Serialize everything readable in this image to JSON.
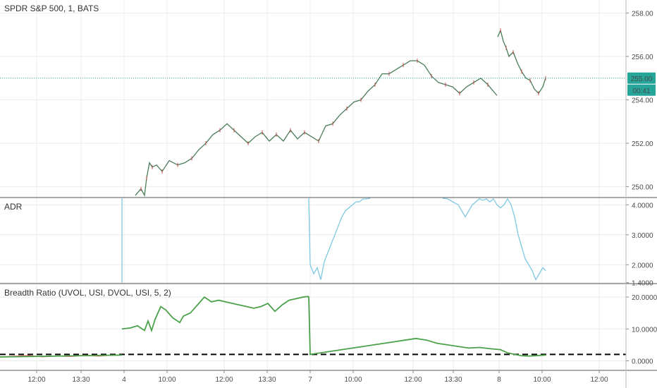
{
  "colors": {
    "price_up": "#4a7c59",
    "price_down": "#c0504d",
    "adr_line": "#7ec8e3",
    "breadth_line": "#4aa14a",
    "breadth_red": "#e05050",
    "dashed": "#000000",
    "last_price_line": "#26a69a",
    "badge": "#26a69a",
    "grid": "#ececec",
    "separator": "#555555"
  },
  "chart_data": [
    {
      "type": "line",
      "title": "SPDR S&P 500, 1, BATS",
      "ylim": [
        249.5,
        258.6
      ],
      "yticks": [
        "258.00",
        "256.00",
        "254.00",
        "252.00",
        "250.00"
      ],
      "ytick_values": [
        258,
        256,
        254,
        252,
        250
      ],
      "last_price_label": "255.00",
      "last_price": 255.0,
      "countdown_label": "00:41",
      "x_ticks": [
        "12:00",
        "13:30",
        "4",
        "10:00",
        "12:00",
        "13:30",
        "7",
        "10:00",
        "12:00",
        "13:30",
        "8",
        "10:00",
        "12:00"
      ],
      "segments": [
        {
          "x": [
            192,
            200,
            205,
            208,
            212,
            216,
            222,
            230,
            240,
            252,
            262,
            272,
            282,
            292,
            302,
            312,
            322,
            332,
            342,
            352,
            362,
            372,
            382,
            392,
            402,
            412,
            422,
            432,
            442,
            452,
            462,
            472,
            482,
            492,
            502,
            512,
            522,
            532,
            542,
            552,
            562,
            572,
            582,
            592,
            602,
            612,
            622,
            632,
            642,
            652,
            662,
            672,
            682,
            692,
            705
          ],
          "y": [
            249.6,
            249.9,
            249.6,
            250.4,
            251.1,
            250.9,
            251.0,
            250.7,
            251.2,
            251.0,
            251.1,
            251.3,
            251.7,
            252.0,
            252.4,
            252.6,
            252.9,
            252.6,
            252.3,
            252.0,
            252.3,
            252.5,
            252.1,
            252.4,
            252.1,
            252.6,
            252.2,
            252.5,
            252.3,
            252.1,
            252.8,
            252.9,
            253.3,
            253.6,
            253.9,
            254.0,
            254.4,
            254.7,
            255.2,
            255.2,
            255.4,
            255.6,
            255.8,
            255.8,
            255.6,
            255.1,
            254.8,
            254.7,
            254.6,
            254.3,
            254.6,
            254.8,
            255.0,
            254.7,
            254.2
          ]
        },
        {
          "x": [
            706,
            710,
            714,
            718,
            722,
            728,
            734,
            740,
            746,
            752,
            758,
            764,
            770,
            774
          ],
          "y": [
            256.9,
            257.2,
            256.7,
            256.4,
            256.0,
            256.2,
            255.7,
            255.3,
            255.0,
            254.9,
            254.5,
            254.3,
            254.6,
            255.0
          ]
        }
      ]
    },
    {
      "type": "line",
      "title": "ADR",
      "ylim": [
        1.37,
        4.22
      ],
      "yticks": [
        "4.0000",
        "3.0000",
        "2.0000",
        "1.4000"
      ],
      "ytick_values": [
        4.0,
        3.0,
        2.0,
        1.4
      ],
      "segments": [
        {
          "x": [
            173,
            173
          ],
          "y": [
            4.3,
            1.4
          ]
        },
        {
          "x": [
            438,
            440,
            445,
            450,
            455,
            460,
            465,
            470,
            475,
            480,
            485,
            490,
            495,
            500,
            505,
            510,
            515,
            520,
            525
          ],
          "y": [
            4.3,
            2.0,
            1.7,
            1.9,
            1.5,
            2.1,
            2.4,
            2.7,
            3.0,
            3.3,
            3.6,
            3.8,
            3.9,
            4.0,
            4.1,
            4.1,
            4.2,
            4.2,
            4.25
          ]
        },
        {
          "x": [
            628,
            635,
            642,
            650,
            655,
            660,
            665,
            670,
            675,
            680,
            685,
            690,
            695,
            700,
            705,
            710,
            715,
            720,
            725,
            730,
            735,
            740,
            745,
            750,
            755,
            760,
            765,
            770,
            774
          ],
          "y": [
            4.25,
            4.2,
            4.1,
            4.0,
            3.8,
            3.6,
            3.8,
            4.0,
            4.1,
            4.2,
            4.15,
            4.2,
            4.1,
            4.2,
            4.0,
            3.9,
            4.0,
            4.2,
            4.0,
            3.6,
            3.0,
            2.6,
            2.2,
            2.0,
            1.8,
            1.5,
            1.7,
            1.9,
            1.8
          ]
        }
      ]
    },
    {
      "type": "line",
      "title": "Breadth Ratio (UVOL, USI, DVOL, USI, 5, 2)",
      "ylim": [
        -3.0,
        24.0
      ],
      "yticks": [
        "20.0000",
        "10.0000",
        "0.0000"
      ],
      "ytick_values": [
        20,
        10,
        0
      ],
      "baseline": 2.0,
      "red_segment": {
        "x": [
          0,
          20,
          40,
          60,
          80,
          100,
          120,
          140,
          160,
          173
        ],
        "y": [
          1.2,
          1.4,
          1.6,
          1.3,
          1.5,
          1.4,
          1.7,
          1.5,
          1.8,
          1.8
        ]
      },
      "segments": [
        {
          "x": [
            0,
            173
          ],
          "y": [
            1.2,
            1.8
          ]
        },
        {
          "x": [
            173,
            185,
            195,
            205,
            210,
            215,
            220,
            228,
            235,
            245,
            255,
            260,
            270,
            280,
            290,
            300,
            310,
            320,
            330,
            340,
            350,
            360,
            370,
            380,
            390,
            400,
            410,
            420,
            430,
            438
          ],
          "y": [
            10.0,
            10.3,
            11.0,
            9.5,
            12.5,
            9.5,
            13.0,
            17.0,
            16.0,
            13.5,
            12.0,
            14.0,
            15.0,
            17.5,
            20.0,
            18.5,
            19.0,
            18.5,
            18.0,
            17.5,
            17.0,
            16.5,
            17.0,
            18.0,
            15.5,
            17.5,
            19.0,
            19.5,
            20.0,
            20.2
          ]
        },
        {
          "x": [
            438,
            440,
            455,
            470,
            485,
            500,
            515,
            530,
            545,
            560,
            575,
            590,
            605,
            620,
            635,
            650,
            665,
            680,
            695,
            710,
            720,
            730,
            740,
            750,
            760,
            774
          ],
          "y": [
            20.2,
            2.0,
            2.5,
            3.0,
            3.5,
            4.0,
            4.5,
            5.0,
            5.5,
            6.0,
            6.5,
            7.0,
            6.5,
            5.5,
            5.0,
            4.5,
            4.0,
            4.2,
            3.8,
            3.5,
            2.5,
            2.0,
            1.6,
            1.5,
            1.6,
            1.8
          ]
        }
      ]
    }
  ]
}
